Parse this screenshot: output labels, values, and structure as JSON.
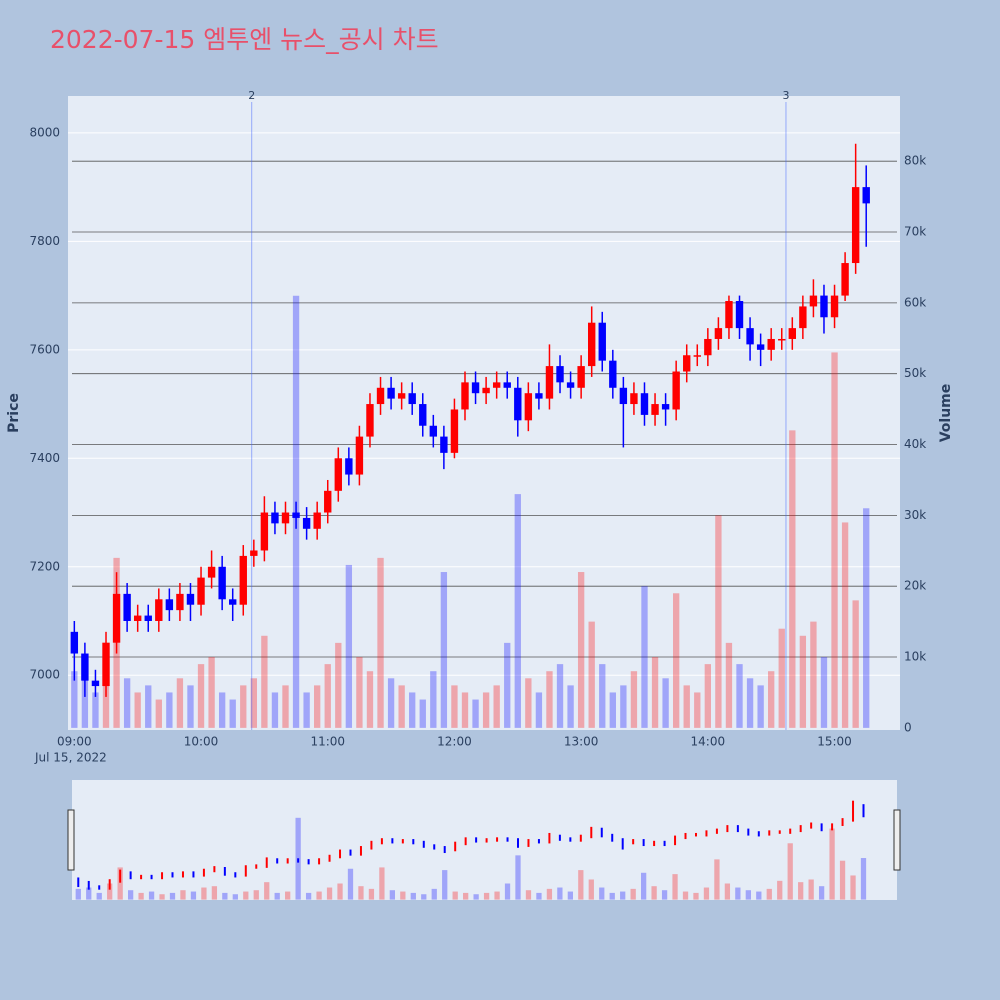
{
  "chart_data": {
    "type": "candlestick",
    "title": "2022-07-15 엠투엔 뉴스_공시 차트",
    "x": [
      "09:00",
      "09:05",
      "09:10",
      "09:15",
      "09:20",
      "09:25",
      "09:30",
      "09:35",
      "09:40",
      "09:45",
      "09:50",
      "09:55",
      "10:00",
      "10:05",
      "10:10",
      "10:15",
      "10:20",
      "10:25",
      "10:30",
      "10:35",
      "10:40",
      "10:45",
      "10:50",
      "10:55",
      "11:00",
      "11:05",
      "11:10",
      "11:15",
      "11:20",
      "11:25",
      "11:30",
      "11:35",
      "11:40",
      "11:45",
      "11:50",
      "11:55",
      "12:00",
      "12:05",
      "12:10",
      "12:15",
      "12:20",
      "12:25",
      "12:30",
      "12:35",
      "12:40",
      "12:45",
      "12:50",
      "12:55",
      "13:00",
      "13:05",
      "13:10",
      "13:15",
      "13:20",
      "13:25",
      "13:30",
      "13:35",
      "13:40",
      "13:45",
      "13:50",
      "13:55",
      "14:00",
      "14:05",
      "14:10",
      "14:15",
      "14:20",
      "14:25",
      "14:30",
      "14:35",
      "14:40",
      "14:45",
      "14:50",
      "14:55",
      "15:00",
      "15:05",
      "15:10",
      "15:15"
    ],
    "x_sublabel": "Jul 15, 2022",
    "xlim": [
      "08:57",
      "15:31"
    ],
    "xticks": [
      "09:00",
      "10:00",
      "11:00",
      "12:00",
      "13:00",
      "14:00",
      "15:00"
    ],
    "open": [
      7080,
      7040,
      6990,
      6980,
      7060,
      7150,
      7100,
      7110,
      7100,
      7140,
      7120,
      7150,
      7130,
      7180,
      7200,
      7140,
      7130,
      7220,
      7230,
      7300,
      7280,
      7300,
      7290,
      7270,
      7300,
      7340,
      7400,
      7370,
      7440,
      7500,
      7530,
      7510,
      7520,
      7500,
      7460,
      7440,
      7410,
      7490,
      7540,
      7520,
      7530,
      7540,
      7530,
      7470,
      7520,
      7510,
      7570,
      7540,
      7530,
      7570,
      7650,
      7580,
      7530,
      7500,
      7520,
      7480,
      7500,
      7490,
      7560,
      7590,
      7590,
      7620,
      7640,
      7690,
      7640,
      7610,
      7600,
      7620,
      7620,
      7640,
      7680,
      7700,
      7660,
      7700,
      7760,
      7900
    ],
    "high": [
      7100,
      7060,
      7010,
      7080,
      7190,
      7170,
      7130,
      7130,
      7160,
      7160,
      7170,
      7170,
      7200,
      7230,
      7220,
      7160,
      7240,
      7250,
      7330,
      7320,
      7320,
      7320,
      7310,
      7320,
      7360,
      7420,
      7420,
      7460,
      7520,
      7550,
      7550,
      7540,
      7540,
      7520,
      7480,
      7460,
      7510,
      7560,
      7560,
      7550,
      7560,
      7560,
      7550,
      7540,
      7540,
      7610,
      7590,
      7560,
      7590,
      7680,
      7670,
      7600,
      7550,
      7540,
      7540,
      7520,
      7520,
      7580,
      7610,
      7610,
      7640,
      7660,
      7700,
      7700,
      7660,
      7630,
      7640,
      7640,
      7660,
      7700,
      7730,
      7720,
      7720,
      7780,
      7980,
      7940
    ],
    "low": [
      6990,
      6960,
      6960,
      6960,
      7040,
      7080,
      7080,
      7080,
      7080,
      7100,
      7100,
      7100,
      7110,
      7160,
      7120,
      7100,
      7110,
      7200,
      7210,
      7260,
      7260,
      7270,
      7250,
      7250,
      7280,
      7320,
      7350,
      7350,
      7420,
      7480,
      7490,
      7490,
      7480,
      7440,
      7420,
      7380,
      7400,
      7470,
      7500,
      7500,
      7510,
      7510,
      7440,
      7450,
      7490,
      7490,
      7520,
      7510,
      7510,
      7550,
      7560,
      7510,
      7420,
      7480,
      7460,
      7460,
      7460,
      7470,
      7540,
      7570,
      7570,
      7600,
      7620,
      7620,
      7580,
      7570,
      7580,
      7600,
      7600,
      7620,
      7660,
      7630,
      7640,
      7690,
      7740,
      7790
    ],
    "close": [
      7040,
      6990,
      6980,
      7060,
      7150,
      7100,
      7110,
      7100,
      7140,
      7120,
      7150,
      7130,
      7180,
      7200,
      7140,
      7130,
      7220,
      7230,
      7300,
      7280,
      7300,
      7290,
      7270,
      7300,
      7340,
      7400,
      7370,
      7440,
      7500,
      7530,
      7510,
      7520,
      7500,
      7460,
      7440,
      7410,
      7490,
      7540,
      7520,
      7530,
      7540,
      7530,
      7470,
      7520,
      7510,
      7570,
      7540,
      7530,
      7570,
      7650,
      7580,
      7530,
      7500,
      7520,
      7480,
      7500,
      7490,
      7560,
      7590,
      7590,
      7620,
      7640,
      7690,
      7640,
      7610,
      7600,
      7620,
      7620,
      7640,
      7680,
      7700,
      7660,
      7700,
      7760,
      7900,
      7870
    ],
    "increasing_color": "#ff0000",
    "decreasing_color": "#0000ff",
    "ylabel": "Price",
    "ylim": [
      6899,
      8068
    ],
    "yticks": [
      7000,
      7200,
      7400,
      7600,
      7800,
      8000
    ],
    "volume": [
      8000,
      9000,
      5000,
      12000,
      24000,
      7000,
      5000,
      6000,
      4000,
      5000,
      7000,
      6000,
      9000,
      10000,
      5000,
      4000,
      6000,
      7000,
      13000,
      5000,
      6000,
      61000,
      5000,
      6000,
      9000,
      12000,
      23000,
      10000,
      8000,
      24000,
      7000,
      6000,
      5000,
      4000,
      8000,
      22000,
      6000,
      5000,
      4000,
      5000,
      6000,
      12000,
      33000,
      7000,
      5000,
      8000,
      9000,
      6000,
      22000,
      15000,
      9000,
      5000,
      6000,
      8000,
      20000,
      10000,
      7000,
      19000,
      6000,
      5000,
      9000,
      30000,
      12000,
      9000,
      7000,
      6000,
      8000,
      14000,
      42000,
      13000,
      15000,
      10000,
      53000,
      29000,
      18000,
      31000
    ],
    "y2label": "Volume",
    "y2lim": [
      -300,
      89200
    ],
    "y2ticks": [
      0,
      {
        "value": 10000,
        "label": "10k"
      },
      {
        "value": 20000,
        "label": "20k"
      },
      {
        "value": 30000,
        "label": "30k"
      },
      {
        "value": 40000,
        "label": "40k"
      },
      {
        "value": 50000,
        "label": "50k"
      },
      {
        "value": 60000,
        "label": "60k"
      },
      {
        "value": 70000,
        "label": "70k"
      },
      {
        "value": 80000,
        "label": "80k"
      }
    ],
    "annotations": [
      {
        "x": "10:24",
        "text": "2"
      },
      {
        "x": "14:37",
        "text": "3"
      }
    ],
    "grid": true,
    "rangeslider": true
  }
}
